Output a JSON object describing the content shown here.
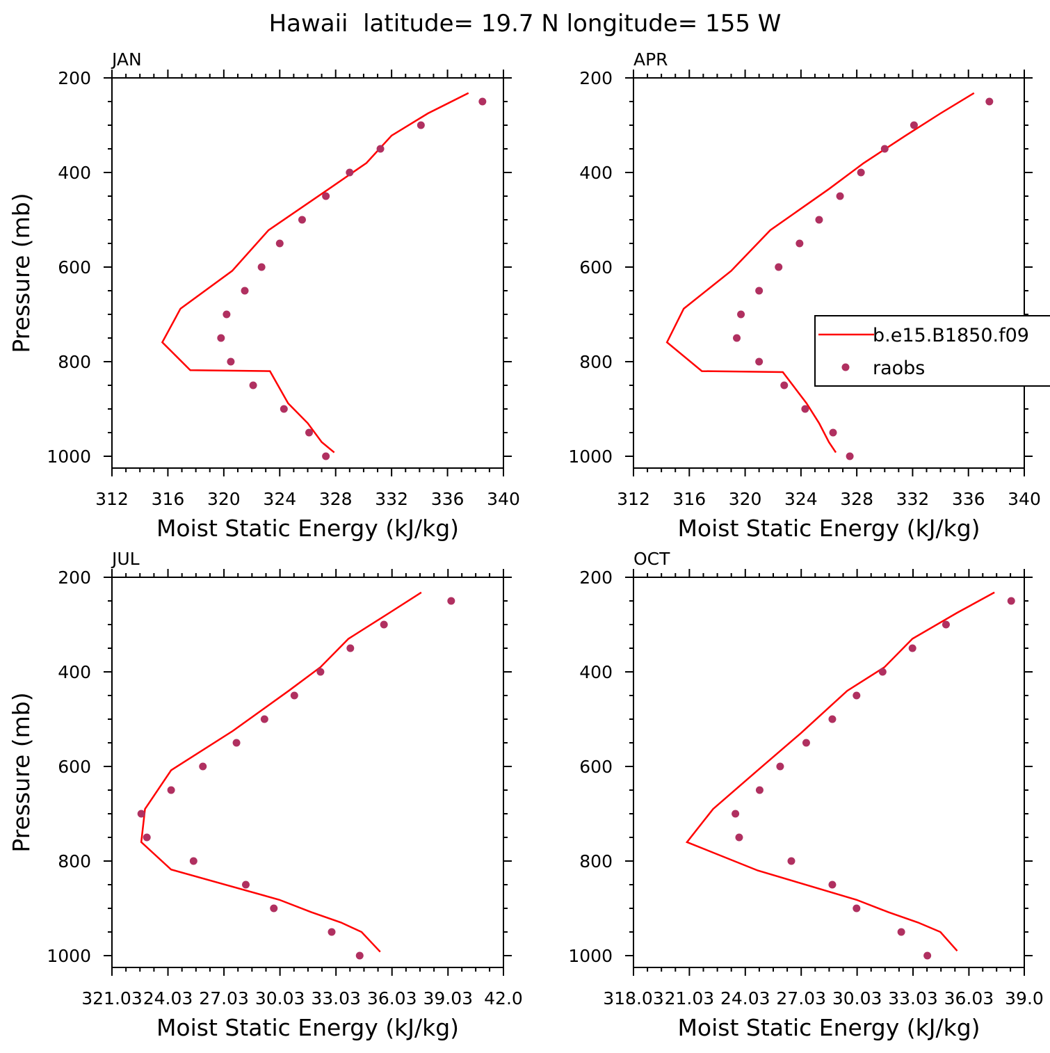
{
  "figure": {
    "title": "Hawaii  latitude= 19.7 N longitude= 155 W",
    "legend": {
      "model_label": "b.e15.B1850.f09",
      "obs_label": "raobs",
      "model_color": "#ff0000",
      "obs_color": "#b03060"
    }
  },
  "chart_data": [
    {
      "type": "line",
      "panel": "JAN",
      "xlabel": "Moist Static Energy (kJ/kg)",
      "ylabel": "Pressure (mb)",
      "xlim": [
        312,
        340
      ],
      "xticks": [
        312,
        316,
        320,
        324,
        328,
        332,
        336,
        340
      ],
      "xtick_labels": [
        "312",
        "316",
        "320",
        "324",
        "328",
        "332",
        "336",
        "340"
      ],
      "ylim": [
        1025,
        200
      ],
      "yticks": [
        200,
        400,
        600,
        800,
        1000
      ],
      "ytick_labels": [
        "200",
        "400",
        "600",
        "800",
        "1000"
      ],
      "series": [
        {
          "name": "b.e15.B1850.f09",
          "style": "line",
          "x": [
            327.9,
            327.0,
            326.0,
            324.6,
            323.3,
            317.6,
            315.6,
            316.9,
            320.6,
            323.2,
            327.5,
            330.2,
            332.0,
            334.6,
            337.5
          ],
          "y": [
            992,
            970,
            930,
            888,
            820,
            818,
            759,
            688,
            608,
            522,
            435,
            380,
            322,
            275,
            232
          ]
        },
        {
          "name": "raobs",
          "style": "points",
          "x": [
            327.3,
            326.1,
            324.3,
            322.1,
            320.5,
            319.8,
            320.2,
            321.5,
            322.7,
            324.0,
            325.6,
            327.3,
            329.0,
            331.2,
            334.1,
            338.5
          ],
          "y": [
            1000,
            950,
            900,
            850,
            800,
            750,
            700,
            650,
            600,
            550,
            500,
            450,
            400,
            350,
            300,
            250
          ]
        }
      ]
    },
    {
      "type": "line",
      "panel": "APR",
      "xlabel": "Moist Static Energy (kJ/kg)",
      "ylabel": "",
      "xlim": [
        312,
        340
      ],
      "xticks": [
        312,
        316,
        320,
        324,
        328,
        332,
        336,
        340
      ],
      "xtick_labels": [
        "312",
        "316",
        "320",
        "324",
        "328",
        "332",
        "336",
        "340"
      ],
      "ylim": [
        1025,
        200
      ],
      "yticks": [
        200,
        400,
        600,
        800,
        1000
      ],
      "ytick_labels": [
        "200",
        "400",
        "600",
        "800",
        "1000"
      ],
      "series": [
        {
          "name": "b.e15.B1850.f09",
          "style": "line",
          "x": [
            326.5,
            326.0,
            325.3,
            324.4,
            322.7,
            316.9,
            314.4,
            315.6,
            319.0,
            321.8,
            326.0,
            328.5,
            331.5,
            334.0,
            336.4
          ],
          "y": [
            992,
            970,
            930,
            888,
            822,
            820,
            759,
            688,
            608,
            522,
            435,
            380,
            322,
            275,
            232
          ]
        },
        {
          "name": "raobs",
          "style": "points",
          "x": [
            327.5,
            326.3,
            324.3,
            322.8,
            321.0,
            319.4,
            319.7,
            321.0,
            322.4,
            323.9,
            325.3,
            326.8,
            328.3,
            330.0,
            332.1,
            337.5
          ],
          "y": [
            1000,
            950,
            900,
            850,
            800,
            750,
            700,
            650,
            600,
            550,
            500,
            450,
            400,
            350,
            300,
            250
          ]
        }
      ]
    },
    {
      "type": "line",
      "panel": "JUL",
      "xlabel": "Moist Static Energy (kJ/kg)",
      "ylabel": "Pressure (mb)",
      "xlim": [
        321.03,
        342.0
      ],
      "xticks": [
        321.03,
        324.03,
        327.03,
        330.03,
        333.03,
        336.03,
        339.03,
        342.0
      ],
      "xtick_labels": [
        "321.03",
        "24.03",
        "27.03",
        "30.03",
        "33.03",
        "36.03",
        "39.03",
        "42.0"
      ],
      "ylim": [
        1025,
        200
      ],
      "yticks": [
        200,
        400,
        600,
        800,
        1000
      ],
      "ytick_labels": [
        "200",
        "400",
        "600",
        "800",
        "1000"
      ],
      "series": [
        {
          "name": "b.e15.B1850.f09",
          "style": "line",
          "x": [
            335.4,
            334.4,
            333.3,
            331.7,
            330.0,
            324.2,
            322.6,
            322.8,
            324.2,
            327.5,
            330.5,
            332.2,
            333.7,
            335.9,
            337.6
          ],
          "y": [
            992,
            950,
            930,
            908,
            882,
            818,
            760,
            690,
            608,
            525,
            440,
            390,
            330,
            275,
            232
          ]
        },
        {
          "name": "raobs",
          "style": "points",
          "x": [
            334.3,
            332.8,
            329.7,
            328.2,
            325.4,
            322.9,
            322.6,
            324.2,
            325.9,
            327.7,
            329.2,
            330.8,
            332.2,
            333.8,
            335.6,
            339.2
          ],
          "y": [
            1000,
            950,
            900,
            850,
            800,
            750,
            700,
            650,
            600,
            550,
            500,
            450,
            400,
            350,
            300,
            250
          ]
        }
      ]
    },
    {
      "type": "line",
      "panel": "OCT",
      "xlabel": "Moist Static Energy (kJ/kg)",
      "ylabel": "",
      "xlim": [
        318.03,
        339.0
      ],
      "xticks": [
        318.03,
        321.03,
        324.03,
        327.03,
        330.03,
        333.03,
        336.03,
        339.0
      ],
      "xtick_labels": [
        "318.03",
        "21.03",
        "24.03",
        "27.03",
        "30.03",
        "33.03",
        "36.03",
        "39.0"
      ],
      "ylim": [
        1025,
        200
      ],
      "yticks": [
        200,
        400,
        600,
        800,
        1000
      ],
      "ytick_labels": [
        "200",
        "400",
        "600",
        "800",
        "1000"
      ],
      "series": [
        {
          "name": "b.e15.B1850.f09",
          "style": "line",
          "x": [
            335.4,
            334.5,
            333.3,
            331.7,
            330.0,
            324.7,
            320.9,
            322.3,
            324.7,
            327.0,
            329.5,
            331.5,
            333.0,
            335.4,
            337.4
          ],
          "y": [
            990,
            950,
            930,
            908,
            882,
            820,
            760,
            690,
            608,
            530,
            440,
            390,
            330,
            275,
            232
          ]
        },
        {
          "name": "raobs",
          "style": "points",
          "x": [
            333.8,
            332.4,
            330.0,
            328.7,
            326.5,
            323.7,
            323.5,
            324.8,
            325.9,
            327.3,
            328.7,
            330.0,
            331.4,
            333.0,
            334.8,
            338.3
          ],
          "y": [
            1000,
            950,
            900,
            850,
            800,
            750,
            700,
            650,
            600,
            550,
            500,
            450,
            400,
            350,
            300,
            250
          ]
        }
      ]
    }
  ]
}
